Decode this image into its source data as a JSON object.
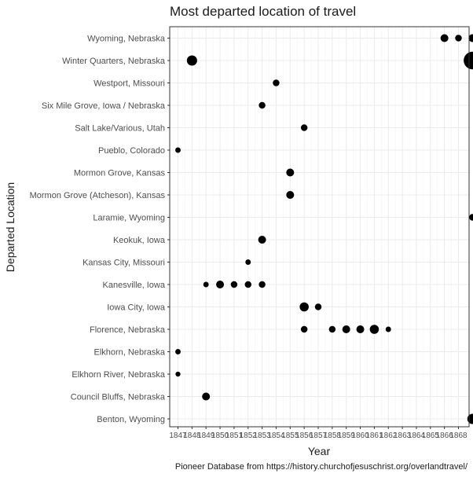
{
  "chart_data": {
    "type": "scatter",
    "title": "Most departed location of travel",
    "xlabel": "Year",
    "ylabel": "Departed Location",
    "caption": "Pioneer Database from https://history.churchofjesuschrist.org/overlandtravel/",
    "grid": true,
    "legend": "none",
    "point_color": "#000000",
    "x_ticks": [
      1847,
      1848,
      1849,
      1850,
      1851,
      1852,
      1853,
      1854,
      1855,
      1856,
      1857,
      1858,
      1859,
      1860,
      1861,
      1862,
      1863,
      1864,
      1865,
      1866,
      1868
    ],
    "xlim": [
      1847,
      1867
    ],
    "categories": [
      "Benton, Wyoming",
      "Council Bluffs, Nebraska",
      "Elkhorn River, Nebraska",
      "Elkhorn, Nebraska",
      "Florence, Nebraska",
      "Iowa City, Iowa",
      "Kanesville, Iowa",
      "Kansas City, Missouri",
      "Keokuk, Iowa",
      "Laramie, Wyoming",
      "Mormon Grove (Atcheson), Kansas",
      "Mormon Grove, Kansas",
      "Pueblo, Colorado",
      "Salt Lake/Various, Utah",
      "Six Mile Grove, Iowa / Nebraska",
      "Westport, Missouri",
      "Winter Quarters, Nebraska",
      "Wyoming, Nebraska"
    ],
    "points": [
      {
        "x": 1866,
        "y": "Wyoming, Nebraska",
        "size": 2
      },
      {
        "x": 1867,
        "y": "Wyoming, Nebraska",
        "size": 1.5
      },
      {
        "x": 1868,
        "y": "Wyoming, Nebraska",
        "size": 2
      },
      {
        "x": 1848,
        "y": "Winter Quarters, Nebraska",
        "size": 3
      },
      {
        "x": 1868,
        "y": "Winter Quarters, Nebraska",
        "size": 6
      },
      {
        "x": 1854,
        "y": "Westport, Missouri",
        "size": 1.5
      },
      {
        "x": 1853,
        "y": "Six Mile Grove, Iowa / Nebraska",
        "size": 1.5
      },
      {
        "x": 1856,
        "y": "Salt Lake/Various, Utah",
        "size": 1.5
      },
      {
        "x": 1847,
        "y": "Pueblo, Colorado",
        "size": 1
      },
      {
        "x": 1855,
        "y": "Mormon Grove, Kansas",
        "size": 2
      },
      {
        "x": 1855,
        "y": "Mormon Grove (Atcheson), Kansas",
        "size": 2
      },
      {
        "x": 1868,
        "y": "Laramie, Wyoming",
        "size": 1.5
      },
      {
        "x": 1853,
        "y": "Keokuk, Iowa",
        "size": 2
      },
      {
        "x": 1852,
        "y": "Kansas City, Missouri",
        "size": 1
      },
      {
        "x": 1849,
        "y": "Kanesville, Iowa",
        "size": 1
      },
      {
        "x": 1850,
        "y": "Kanesville, Iowa",
        "size": 2
      },
      {
        "x": 1851,
        "y": "Kanesville, Iowa",
        "size": 1.5
      },
      {
        "x": 1852,
        "y": "Kanesville, Iowa",
        "size": 1.5
      },
      {
        "x": 1853,
        "y": "Kanesville, Iowa",
        "size": 1.5
      },
      {
        "x": 1856,
        "y": "Iowa City, Iowa",
        "size": 2.5
      },
      {
        "x": 1857,
        "y": "Iowa City, Iowa",
        "size": 1.5
      },
      {
        "x": 1856,
        "y": "Florence, Nebraska",
        "size": 1.5
      },
      {
        "x": 1858,
        "y": "Florence, Nebraska",
        "size": 1.5
      },
      {
        "x": 1859,
        "y": "Florence, Nebraska",
        "size": 2
      },
      {
        "x": 1860,
        "y": "Florence, Nebraska",
        "size": 2
      },
      {
        "x": 1861,
        "y": "Florence, Nebraska",
        "size": 2.5
      },
      {
        "x": 1862,
        "y": "Florence, Nebraska",
        "size": 1
      },
      {
        "x": 1847,
        "y": "Elkhorn, Nebraska",
        "size": 1
      },
      {
        "x": 1847,
        "y": "Elkhorn River, Nebraska",
        "size": 0.8
      },
      {
        "x": 1849,
        "y": "Council Bluffs, Nebraska",
        "size": 2
      },
      {
        "x": 1868,
        "y": "Benton, Wyoming",
        "size": 3
      }
    ]
  }
}
